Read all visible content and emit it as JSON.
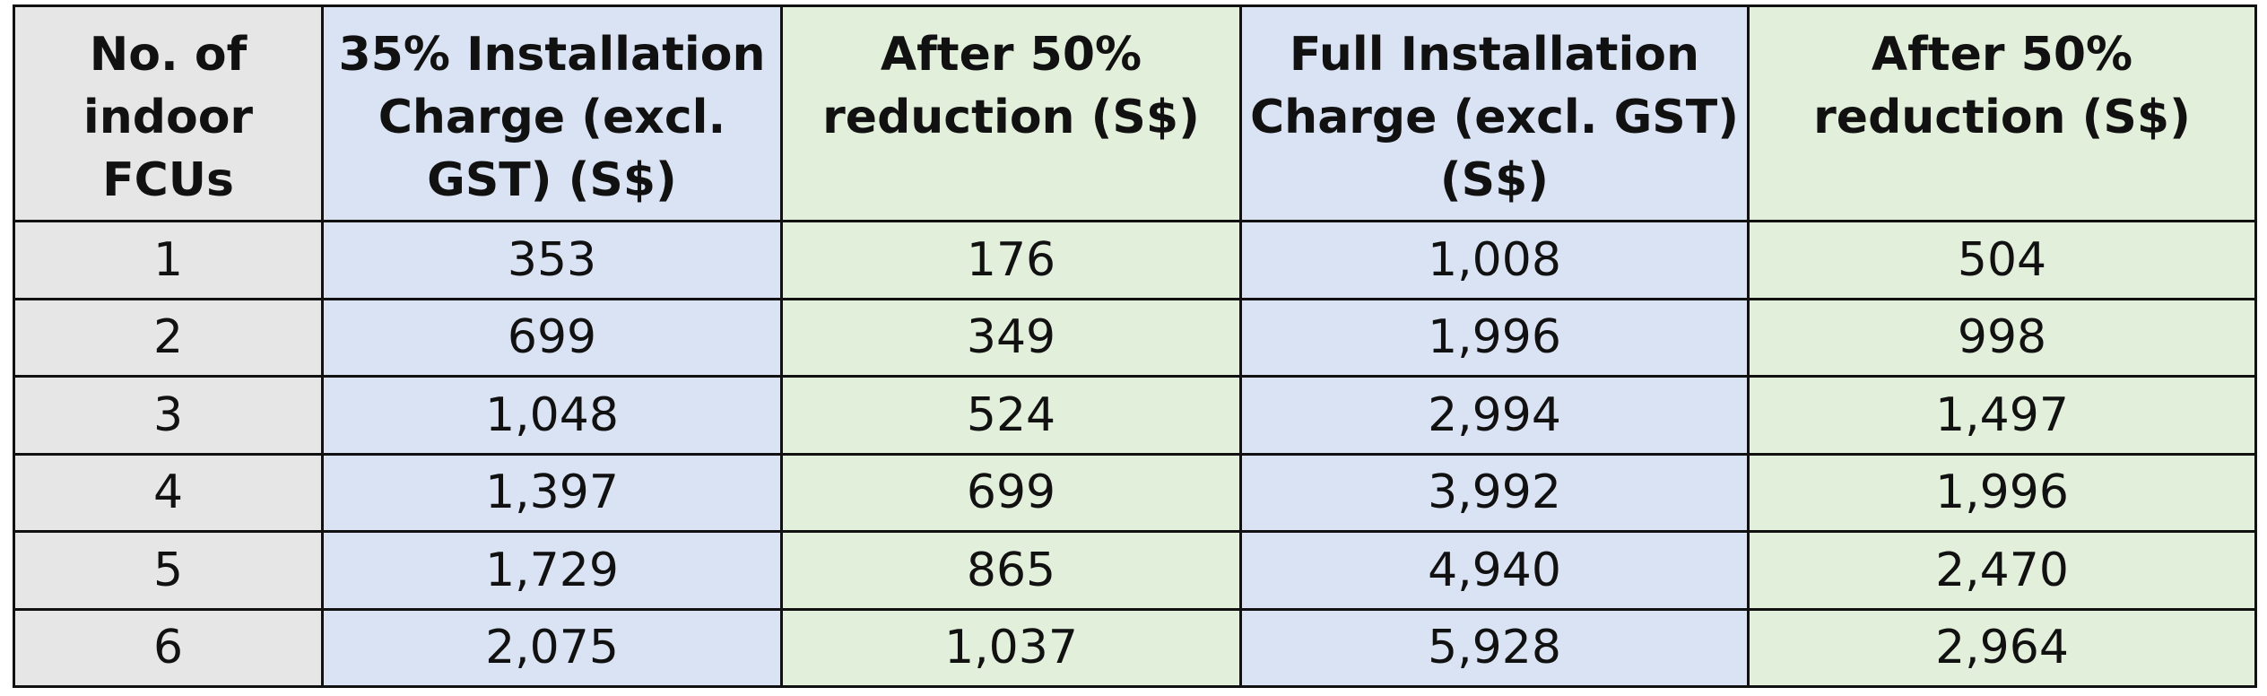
{
  "table": {
    "headers": [
      "No. of indoor FCUs",
      "35% Installation Charge (excl. GST) (S$)",
      "After 50% reduction (S$)",
      "Full Installation Charge (excl. GST) (S$)",
      "After 50% reduction (S$)"
    ],
    "rows": [
      [
        "1",
        "353",
        "176",
        "1,008",
        "504"
      ],
      [
        "2",
        "699",
        "349",
        "1,996",
        "998"
      ],
      [
        "3",
        "1,048",
        "524",
        "2,994",
        "1,497"
      ],
      [
        "4",
        "1,397",
        "699",
        "3,992",
        "1,996"
      ],
      [
        "5",
        "1,729",
        "865",
        "4,940",
        "2,470"
      ],
      [
        "6",
        "2,075",
        "1,037",
        "5,928",
        "2,964"
      ]
    ]
  },
  "colors": {
    "first_column": "#e6e6e6",
    "installation_charge_columns": "#dae3f3",
    "reduction_columns": "#e2efda",
    "border": "#111111"
  }
}
